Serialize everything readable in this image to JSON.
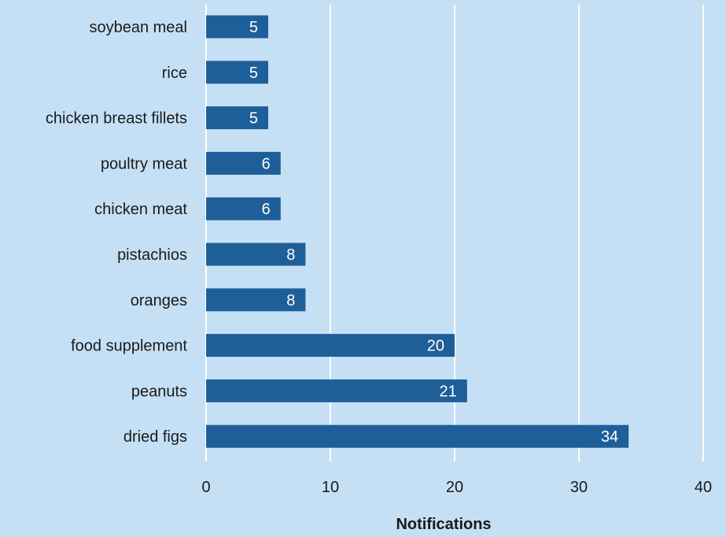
{
  "chart_data": {
    "type": "bar",
    "orientation": "horizontal",
    "categories": [
      "soybean meal",
      "rice",
      "chicken breast fillets",
      "poultry meat",
      "chicken meat",
      "pistachios",
      "oranges",
      "food supplement",
      "peanuts",
      "dried figs"
    ],
    "values": [
      5,
      5,
      5,
      6,
      6,
      8,
      8,
      20,
      21,
      34
    ],
    "xlabel": "Notifications",
    "ylabel": "",
    "xlim": [
      0,
      40
    ],
    "xticks": [
      "0",
      "10",
      "20",
      "30",
      "40"
    ],
    "grid": true,
    "legend": "none",
    "colors": {
      "background": "#c5e0f5",
      "bar": "#1f5f99",
      "grid": "#ffffff",
      "text": "#1a1a1a",
      "value_text": "#ffffff"
    }
  }
}
